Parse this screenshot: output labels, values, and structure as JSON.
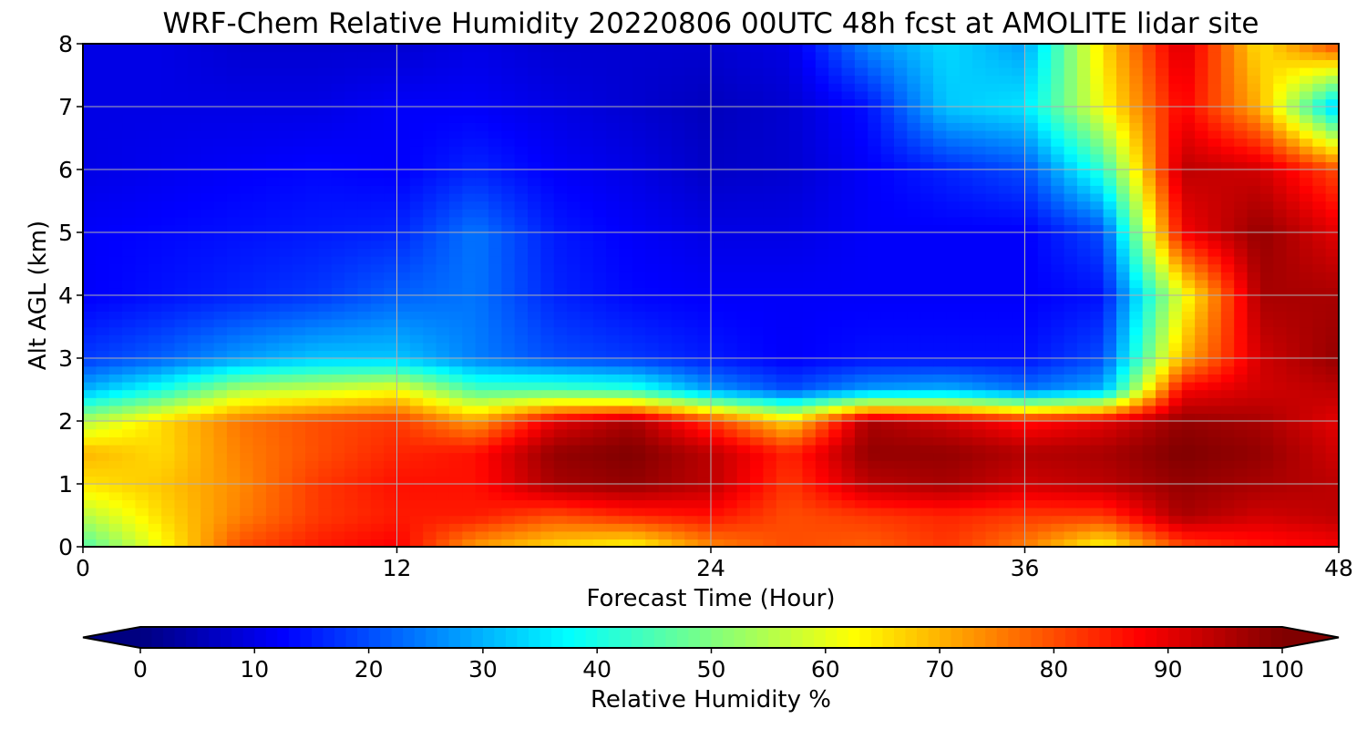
{
  "chart_data": {
    "type": "heatmap",
    "title": "WRF-Chem Relative Humidity 20220806 00UTC 48h fcst at AMOLITE lidar site",
    "xlabel": "Forecast Time (Hour)",
    "ylabel": "Alt AGL (km)",
    "xlim": [
      0,
      48
    ],
    "ylim": [
      0,
      8
    ],
    "xticks": [
      0,
      12,
      24,
      36,
      48
    ],
    "yticks": [
      0,
      1,
      2,
      3,
      4,
      5,
      6,
      7,
      8
    ],
    "grid": true,
    "colormap": "jet",
    "colorbar": {
      "label": "Relative Humidity %",
      "range": [
        0,
        100
      ],
      "ticks": [
        0,
        10,
        20,
        30,
        40,
        50,
        60,
        70,
        80,
        90,
        100
      ],
      "extend": "both",
      "orientation": "horizontal",
      "placement": "bottom"
    },
    "x": [
      0,
      3,
      6,
      9,
      12,
      15,
      18,
      21,
      24,
      27,
      30,
      33,
      36,
      39,
      42,
      45,
      48
    ],
    "y": [
      0,
      0.5,
      1,
      1.5,
      2,
      2.5,
      3,
      4,
      5,
      6,
      7,
      8
    ],
    "z": [
      [
        45,
        62,
        80,
        85,
        88,
        72,
        66,
        62,
        74,
        80,
        78,
        82,
        75,
        62,
        80,
        85,
        88
      ],
      [
        55,
        66,
        75,
        82,
        85,
        85,
        80,
        84,
        86,
        80,
        82,
        84,
        82,
        82,
        96,
        92,
        94
      ],
      [
        65,
        68,
        74,
        82,
        86,
        86,
        96,
        98,
        94,
        82,
        94,
        96,
        92,
        94,
        98,
        96,
        94
      ],
      [
        70,
        66,
        75,
        80,
        84,
        86,
        98,
        100,
        94,
        84,
        98,
        98,
        95,
        96,
        100,
        98,
        92
      ],
      [
        55,
        66,
        76,
        80,
        82,
        72,
        90,
        96,
        82,
        66,
        96,
        92,
        86,
        90,
        98,
        96,
        90
      ],
      [
        30,
        40,
        55,
        58,
        62,
        45,
        45,
        42,
        28,
        20,
        28,
        30,
        24,
        30,
        88,
        92,
        94
      ],
      [
        18,
        22,
        28,
        32,
        32,
        25,
        20,
        18,
        15,
        12,
        14,
        14,
        14,
        20,
        70,
        92,
        98
      ],
      [
        12,
        14,
        16,
        18,
        22,
        24,
        16,
        13,
        12,
        12,
        12,
        12,
        12,
        14,
        60,
        96,
        96
      ],
      [
        12,
        13,
        14,
        15,
        16,
        24,
        15,
        12,
        10,
        10,
        12,
        12,
        12,
        20,
        88,
        98,
        90
      ],
      [
        10,
        11,
        12,
        13,
        12,
        16,
        12,
        10,
        7,
        8,
        12,
        16,
        20,
        42,
        94,
        92,
        80
      ],
      [
        10,
        10,
        10,
        10,
        12,
        12,
        10,
        8,
        6,
        8,
        14,
        32,
        35,
        62,
        88,
        70,
        30
      ],
      [
        10,
        10,
        8,
        8,
        8,
        10,
        8,
        8,
        8,
        10,
        26,
        34,
        28,
        66,
        92,
        65,
        82
      ]
    ]
  }
}
